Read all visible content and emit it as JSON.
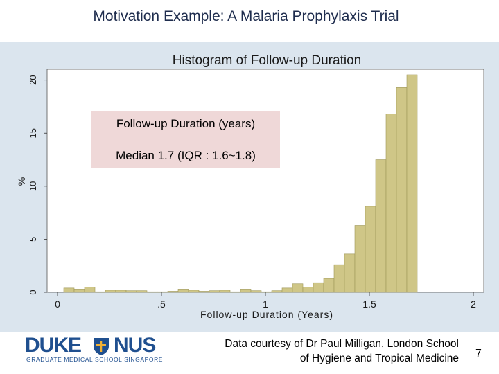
{
  "slide": {
    "title": "Motivation Example: A Malaria Prophylaxis Trial",
    "credit_line1": "Data courtesy of Dr Paul Milligan, London School",
    "credit_line2": "of Hygiene and Tropical Medicine",
    "page_number": "7",
    "logo": {
      "word_left": "DUKE",
      "word_right": "NUS",
      "tagline": "GRADUATE MEDICAL SCHOOL SINGAPORE"
    }
  },
  "annotation": {
    "line1": "Follow-up Duration (years)",
    "line2": "Median 1.7 (IQR : 1.6~1.8)"
  },
  "colors": {
    "bar_fill": "#cfc687",
    "bar_stroke": "#9d9658",
    "panel_bg": "#dbe5ee",
    "plot_bg": "#ffffff",
    "annotation_bg": "#efd8d8"
  },
  "chart_data": {
    "type": "bar",
    "title": "Histogram of Follow-up Duration",
    "xlabel": "Follow-up Duration (Years)",
    "ylabel": "%",
    "xlim": [
      -0.05,
      2.05
    ],
    "ylim": [
      0,
      20.5
    ],
    "grid": false,
    "bin_width": 0.05,
    "bins": [
      {
        "x0": 0.03,
        "value": 0.4
      },
      {
        "x0": 0.08,
        "value": 0.3
      },
      {
        "x0": 0.13,
        "value": 0.5
      },
      {
        "x0": 0.18,
        "value": 0.05
      },
      {
        "x0": 0.23,
        "value": 0.2
      },
      {
        "x0": 0.28,
        "value": 0.2
      },
      {
        "x0": 0.33,
        "value": 0.15
      },
      {
        "x0": 0.38,
        "value": 0.15
      },
      {
        "x0": 0.43,
        "value": 0.05
      },
      {
        "x0": 0.48,
        "value": 0.05
      },
      {
        "x0": 0.53,
        "value": 0.1
      },
      {
        "x0": 0.58,
        "value": 0.3
      },
      {
        "x0": 0.63,
        "value": 0.2
      },
      {
        "x0": 0.68,
        "value": 0.1
      },
      {
        "x0": 0.73,
        "value": 0.15
      },
      {
        "x0": 0.78,
        "value": 0.2
      },
      {
        "x0": 0.83,
        "value": 0.05
      },
      {
        "x0": 0.88,
        "value": 0.3
      },
      {
        "x0": 0.93,
        "value": 0.15
      },
      {
        "x0": 0.98,
        "value": 0.05
      },
      {
        "x0": 1.03,
        "value": 0.15
      },
      {
        "x0": 1.08,
        "value": 0.4
      },
      {
        "x0": 1.13,
        "value": 0.8
      },
      {
        "x0": 1.18,
        "value": 0.5
      },
      {
        "x0": 1.23,
        "value": 0.9
      },
      {
        "x0": 1.28,
        "value": 1.3
      },
      {
        "x0": 1.33,
        "value": 2.6
      },
      {
        "x0": 1.38,
        "value": 3.6
      },
      {
        "x0": 1.43,
        "value": 6.3
      },
      {
        "x0": 1.48,
        "value": 8.1
      },
      {
        "x0": 1.53,
        "value": 12.5
      },
      {
        "x0": 1.58,
        "value": 16.8
      },
      {
        "x0": 1.63,
        "value": 19.3
      },
      {
        "x0": 1.68,
        "value": 20.5
      }
    ],
    "x_ticks": [
      {
        "value": 0,
        "label": "0"
      },
      {
        "value": 0.5,
        "label": ".5"
      },
      {
        "value": 1,
        "label": "1"
      },
      {
        "value": 1.5,
        "label": "1.5"
      },
      {
        "value": 2,
        "label": "2"
      }
    ],
    "y_ticks": [
      {
        "value": 0,
        "label": "0"
      },
      {
        "value": 5,
        "label": "5"
      },
      {
        "value": 10,
        "label": "10"
      },
      {
        "value": 15,
        "label": "15"
      },
      {
        "value": 20,
        "label": "20"
      }
    ]
  }
}
